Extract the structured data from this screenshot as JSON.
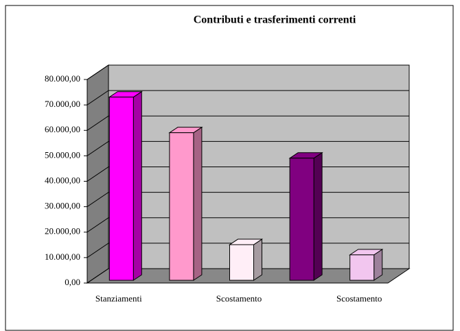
{
  "chart_data": {
    "type": "bar3d",
    "title": "Contributi e trasferimenti correnti",
    "categories": [
      "Stanziamenti",
      null,
      "Scostamento",
      null,
      "Scostamento"
    ],
    "values": [
      72000,
      58000,
      14000,
      48000,
      10000
    ],
    "colors": [
      "#ff00ff",
      "#ff99cc",
      "#ffeef7",
      "#800080",
      "#f2c6ef"
    ],
    "ylim": [
      0,
      80000
    ],
    "yticks": [
      {
        "value": 0,
        "label": "0,00"
      },
      {
        "value": 10000,
        "label": "10.000,00"
      },
      {
        "value": 20000,
        "label": "20.000,00"
      },
      {
        "value": 30000,
        "label": "30.000,00"
      },
      {
        "value": 40000,
        "label": "40.000,00"
      },
      {
        "value": 50000,
        "label": "50.000,00"
      },
      {
        "value": 60000,
        "label": "60.000,00"
      },
      {
        "value": 70000,
        "label": "70.000,00"
      },
      {
        "value": 80000,
        "label": "80.000,00"
      }
    ],
    "grid": true
  }
}
